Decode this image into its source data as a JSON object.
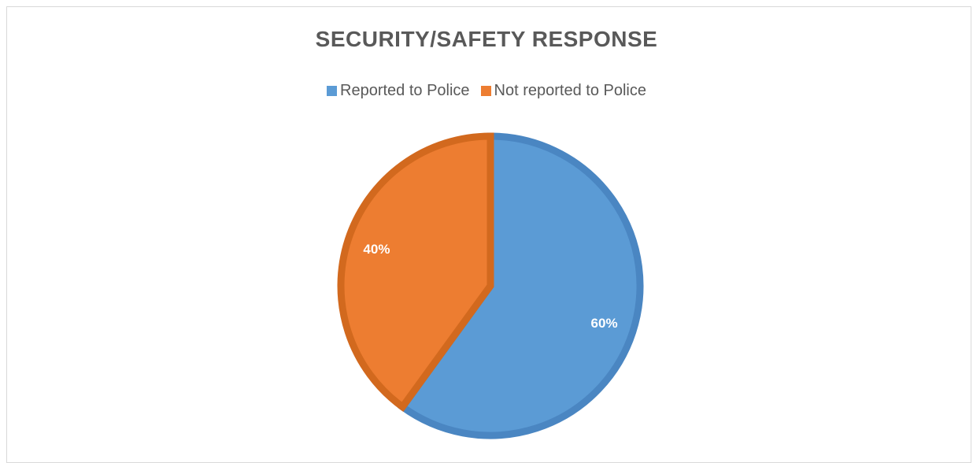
{
  "chart_data": {
    "type": "pie",
    "title": "SECURITY/SAFETY RESPONSE",
    "legend_position": "top",
    "slices": [
      {
        "label": "Reported to Police",
        "value": 60,
        "data_label": "60%",
        "color": "#5B9BD5",
        "border_color": "#4A86C2"
      },
      {
        "label": "Not reported to Police",
        "value": 40,
        "data_label": "40%",
        "color": "#ED7D31",
        "border_color": "#D2691E"
      }
    ]
  }
}
